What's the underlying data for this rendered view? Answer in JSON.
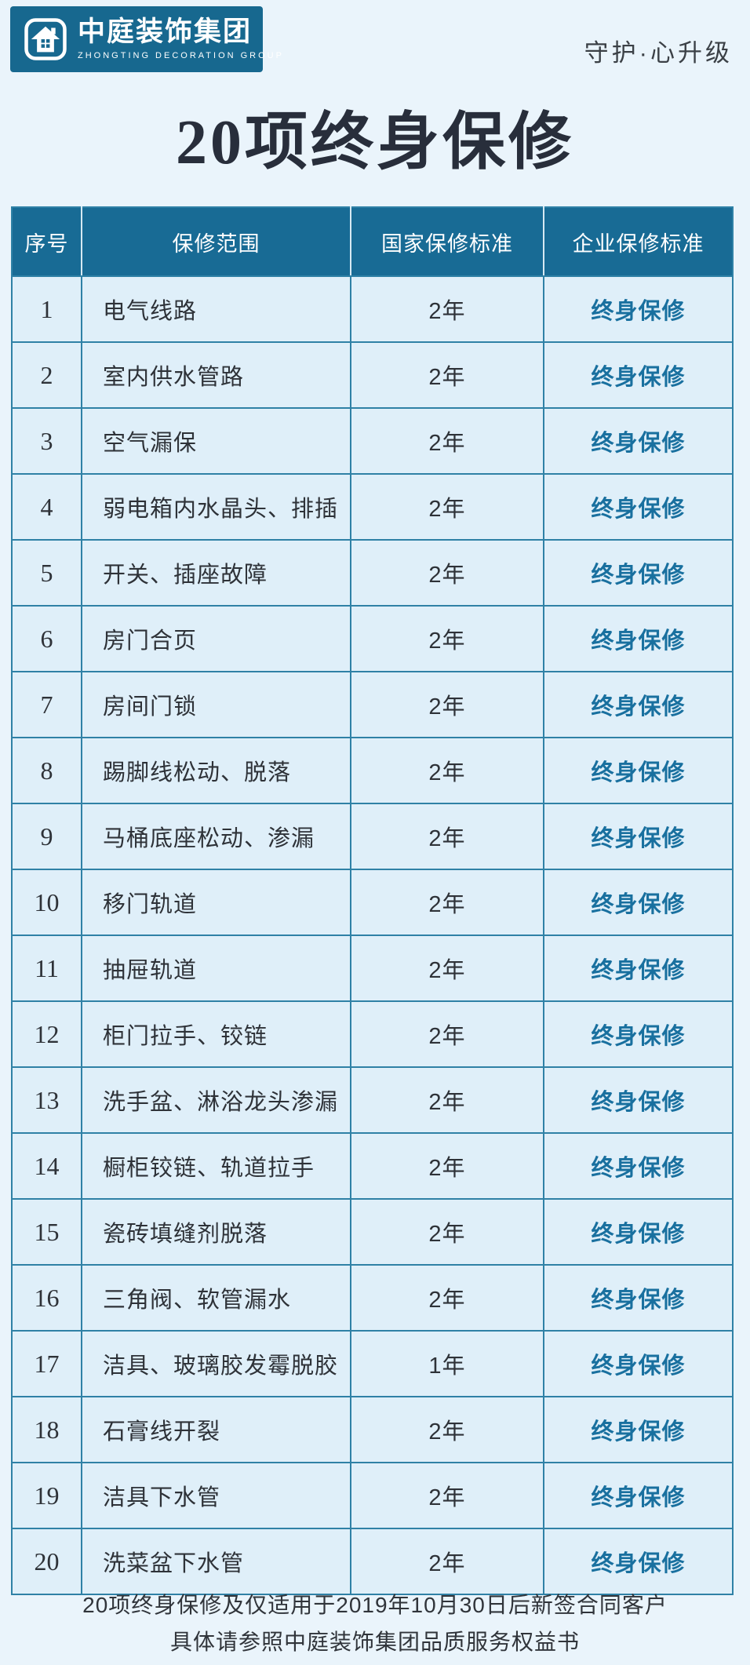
{
  "brand": {
    "name_cn": "中庭装饰集团",
    "name_en": "ZHONGTING DECORATION GROUP",
    "slogan": "守护·心升级"
  },
  "title": "20项终身保修",
  "table": {
    "headers": [
      "序号",
      "保修范围",
      "国家保修标准",
      "企业保修标准"
    ],
    "rows": [
      {
        "no": "1",
        "scope": "电气线路",
        "national": "2年",
        "enterprise": "终身保修"
      },
      {
        "no": "2",
        "scope": "室内供水管路",
        "national": "2年",
        "enterprise": "终身保修"
      },
      {
        "no": "3",
        "scope": "空气漏保",
        "national": "2年",
        "enterprise": "终身保修"
      },
      {
        "no": "4",
        "scope": "弱电箱内水晶头、排插",
        "national": "2年",
        "enterprise": "终身保修"
      },
      {
        "no": "5",
        "scope": "开关、插座故障",
        "national": "2年",
        "enterprise": "终身保修"
      },
      {
        "no": "6",
        "scope": "房门合页",
        "national": "2年",
        "enterprise": "终身保修"
      },
      {
        "no": "7",
        "scope": "房间门锁",
        "national": "2年",
        "enterprise": "终身保修"
      },
      {
        "no": "8",
        "scope": "踢脚线松动、脱落",
        "national": "2年",
        "enterprise": "终身保修"
      },
      {
        "no": "9",
        "scope": "马桶底座松动、渗漏",
        "national": "2年",
        "enterprise": "终身保修"
      },
      {
        "no": "10",
        "scope": "移门轨道",
        "national": "2年",
        "enterprise": "终身保修"
      },
      {
        "no": "11",
        "scope": "抽屉轨道",
        "national": "2年",
        "enterprise": "终身保修"
      },
      {
        "no": "12",
        "scope": "柜门拉手、铰链",
        "national": "2年",
        "enterprise": "终身保修"
      },
      {
        "no": "13",
        "scope": "洗手盆、淋浴龙头渗漏",
        "national": "2年",
        "enterprise": "终身保修"
      },
      {
        "no": "14",
        "scope": "橱柜铰链、轨道拉手",
        "national": "2年",
        "enterprise": "终身保修"
      },
      {
        "no": "15",
        "scope": "瓷砖填缝剂脱落",
        "national": "2年",
        "enterprise": "终身保修"
      },
      {
        "no": "16",
        "scope": "三角阀、软管漏水",
        "national": "2年",
        "enterprise": "终身保修"
      },
      {
        "no": "17",
        "scope": "洁具、玻璃胶发霉脱胶",
        "national": "1年",
        "enterprise": "终身保修"
      },
      {
        "no": "18",
        "scope": "石膏线开裂",
        "national": "2年",
        "enterprise": "终身保修"
      },
      {
        "no": "19",
        "scope": "洁具下水管",
        "national": "2年",
        "enterprise": "终身保修"
      },
      {
        "no": "20",
        "scope": "洗菜盆下水管",
        "national": "2年",
        "enterprise": "终身保修"
      }
    ]
  },
  "footer": {
    "line1": "20项终身保修及仅适用于2019年10月30日后新签合同客户",
    "line2": "具体请参照中庭装饰集团品质服务权益书"
  },
  "colors": {
    "page_background": "#EAF4FB",
    "brand_teal": "#17688F",
    "header_background": "#186B95",
    "row_background": "#DFEFF9",
    "table_border": "#2F81A6",
    "enterprise_text": "#19709F",
    "body_text": "#2E3238",
    "title_text": "#282E3B"
  }
}
